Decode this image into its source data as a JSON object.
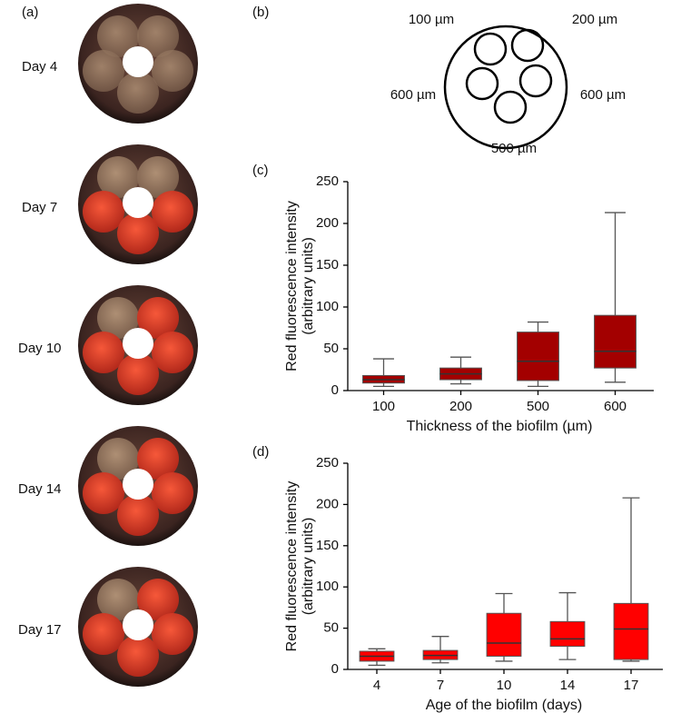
{
  "panels": {
    "a": {
      "label": "(a)",
      "days": [
        "Day 4",
        "Day 7",
        "Day 10",
        "Day 14",
        "Day 17"
      ]
    },
    "b": {
      "label": "(b)",
      "sizes": [
        "100 µm",
        "200 µm",
        "600 µm",
        "600 µm",
        "500 µm"
      ]
    }
  },
  "chart_data": [
    {
      "type": "box",
      "panel_label": "(c)",
      "ylabel": [
        "Red fluorescence intensity",
        "(arbitrary units)"
      ],
      "xlabel": "Thickness of the biofilm (µm)",
      "color": "#a30000",
      "categories": [
        "100",
        "200",
        "500",
        "600"
      ],
      "min": [
        5,
        8,
        5,
        10
      ],
      "q1": [
        9,
        13,
        12,
        27
      ],
      "median": [
        13,
        20,
        35,
        47
      ],
      "q3": [
        18,
        27,
        70,
        90
      ],
      "max": [
        38,
        40,
        82,
        213
      ],
      "ylim": [
        0,
        250
      ],
      "yticks": [
        0,
        50,
        100,
        150,
        200,
        250
      ]
    },
    {
      "type": "box",
      "panel_label": "(d)",
      "ylabel": [
        "Red fluorescence intensity",
        "(arbitrary units)"
      ],
      "xlabel": "Age of the biofilm (days)",
      "color": "#ff0000",
      "categories": [
        "4",
        "7",
        "10",
        "14",
        "17"
      ],
      "min": [
        5,
        8,
        10,
        12,
        10
      ],
      "q1": [
        10,
        12,
        16,
        28,
        12
      ],
      "median": [
        16,
        17,
        32,
        37,
        49
      ],
      "q3": [
        22,
        23,
        68,
        58,
        80
      ],
      "max": [
        25,
        40,
        92,
        93,
        208
      ],
      "ylim": [
        0,
        250
      ],
      "yticks": [
        0,
        50,
        100,
        150,
        200,
        250
      ]
    }
  ]
}
